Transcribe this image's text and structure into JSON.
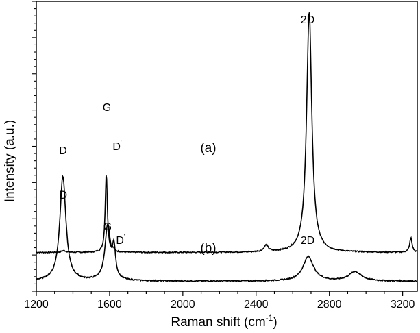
{
  "chart_data": {
    "type": "line",
    "title": "",
    "xlabel": "Raman shift (cm",
    "xlabel_sup": "-1",
    "xlabel_end": ")",
    "ylabel": "Intensity (a.u.)",
    "xlim": [
      1200,
      3280
    ],
    "x_ticks": [
      "1200",
      "1600",
      "2000",
      "2400",
      "2800",
      "3200"
    ],
    "y_tick_labels": false,
    "grid": false,
    "legend": "none",
    "series": [
      {
        "name": "(a)",
        "baseline": 0.2,
        "noise": 0.004,
        "peaks": [
          {
            "center": 1350,
            "height": 0.012,
            "width": 16
          },
          {
            "center": 1582,
            "height": 0.55,
            "width": 7
          },
          {
            "center": 1620,
            "height": 0.02,
            "width": 8
          },
          {
            "center": 2455,
            "height": 0.045,
            "width": 14
          },
          {
            "center": 2690,
            "height": 1.68,
            "width": 17
          },
          {
            "center": 3245,
            "height": 0.1,
            "width": 8
          }
        ]
      },
      {
        "name": "(b)",
        "baseline": 0.0,
        "noise": 0.004,
        "peaks": [
          {
            "center": 1345,
            "height": 0.73,
            "width": 20
          },
          {
            "center": 1590,
            "height": 0.38,
            "width": 18
          },
          {
            "center": 1624,
            "height": 0.2,
            "width": 10
          },
          {
            "center": 2685,
            "height": 0.17,
            "width": 35
          },
          {
            "center": 2940,
            "height": 0.065,
            "width": 40
          }
        ]
      }
    ],
    "annotations": [
      {
        "text": "D",
        "series": 0
      },
      {
        "text": "G",
        "series": 0
      },
      {
        "text": "D",
        "prime": "'",
        "series": 0
      },
      {
        "text": "(a)",
        "series": 0
      },
      {
        "text": "2D",
        "series": 0
      },
      {
        "text": "D",
        "series": 1
      },
      {
        "text": "G",
        "series": 1
      },
      {
        "text": "D",
        "prime": "'",
        "series": 1
      },
      {
        "text": "(b)",
        "series": 1
      },
      {
        "text": "2D",
        "series": 1
      }
    ],
    "line_color": "#000000"
  }
}
